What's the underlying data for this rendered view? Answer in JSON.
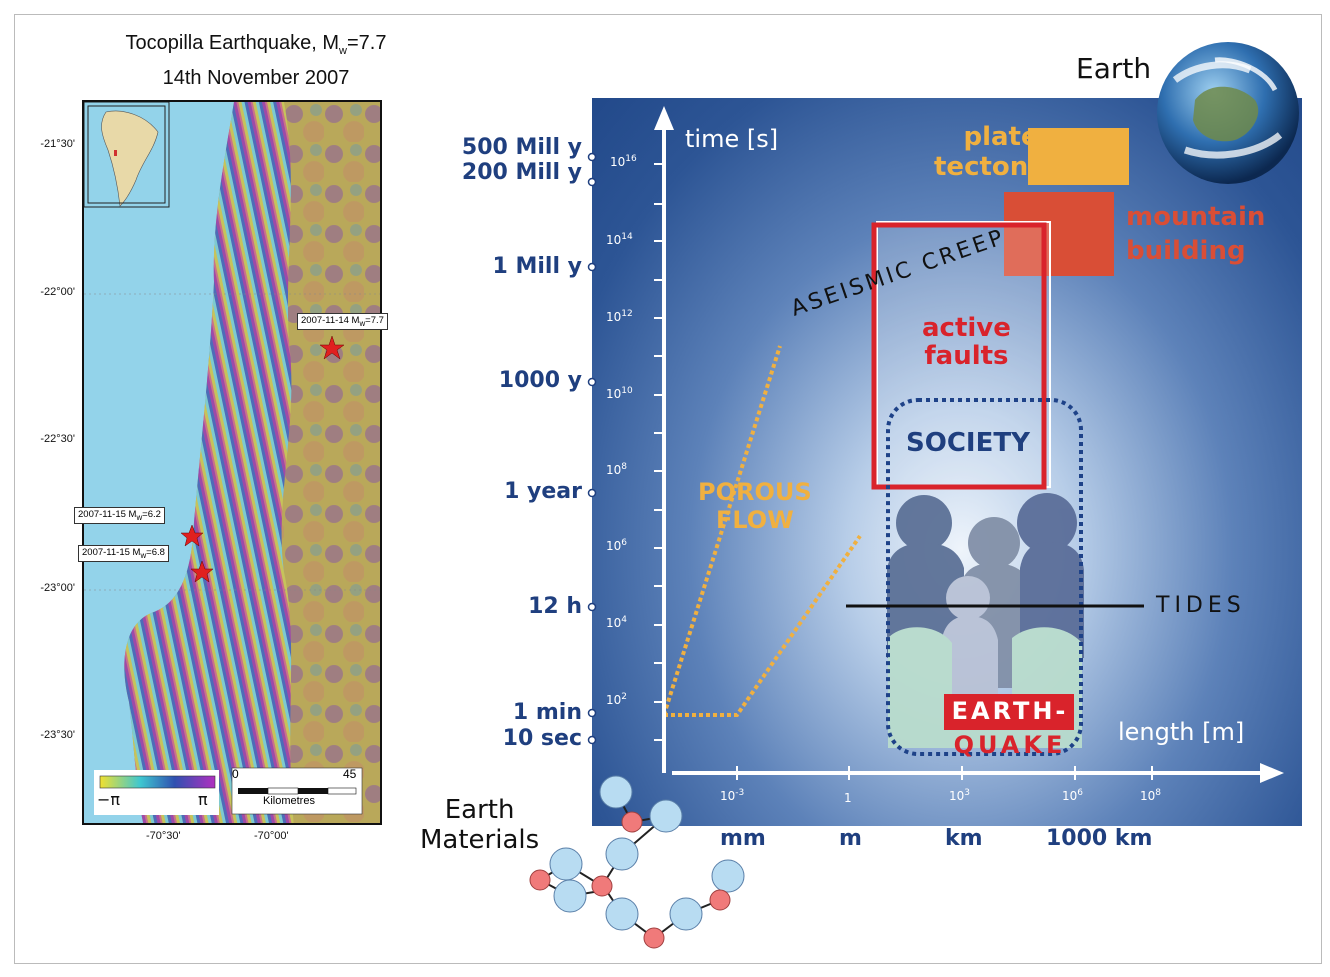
{
  "map": {
    "title_line1": "Tocopilla Earthquake, M",
    "title_sub": "w",
    "title_rest": "=7.7",
    "title_line2": "14th November 2007",
    "lat_ticks": [
      "-21°30'",
      "-22°00'",
      "-22°30'",
      "-23°00'",
      "-23°30'"
    ],
    "lon_ticks": [
      "-70°30'",
      "-70°00'"
    ],
    "quakes": [
      {
        "date": "2007-11-14",
        "mag": "M",
        "mag_sub": "w",
        "val": "=7.7"
      },
      {
        "date": "2007-11-15",
        "mag": "M",
        "mag_sub": "w",
        "val": "=6.2"
      },
      {
        "date": "2007-11-15",
        "mag": "M",
        "mag_sub": "w",
        "val": "=6.8"
      }
    ],
    "phase_min": "−π",
    "phase_max": "π",
    "scale_start": "0",
    "scale_end": "45",
    "scale_unit": "Kilometres"
  },
  "diagram": {
    "earth_label": "Earth",
    "y_axis_label": "time [s]",
    "x_axis_label": "length [m]",
    "time_labels": [
      "500 Mill y",
      "200 Mill y",
      "1 Mill y",
      "1000 y",
      "1 year",
      "12  h",
      "1  min",
      "10  sec"
    ],
    "y_tick_exps": [
      "16",
      "14",
      "12",
      "10",
      "8",
      "6",
      "4",
      "2"
    ],
    "x_ticks": [
      {
        "base": "10",
        "exp": "-3"
      },
      {
        "base": "1",
        "exp": ""
      },
      {
        "base": "10",
        "exp": "3"
      },
      {
        "base": "10",
        "exp": "6"
      },
      {
        "base": "10",
        "exp": "8"
      }
    ],
    "x_units": [
      "mm",
      "m",
      "km",
      "1000 km"
    ],
    "plate_line1": "plate",
    "plate_line2": "tectonics",
    "mountain_line1": "mountain",
    "mountain_line2": "building",
    "aseismic": "ASEISMIC CREEP",
    "active_line1": "active",
    "active_line2": "faults",
    "society": "SOCIETY",
    "porous_line1": "POROUS",
    "porous_line2": "FLOW",
    "tides": "TIDES",
    "eq_line1": "EARTH-",
    "eq_line2": "QUAKE",
    "materials_line1": "Earth",
    "materials_line2": "Materials",
    "colors": {
      "axis_label_blue": "#1f3f7f",
      "plate": "#f0b040",
      "mountain": "#d94e36",
      "active": "#d9232b",
      "porous": "#f0b040"
    }
  }
}
